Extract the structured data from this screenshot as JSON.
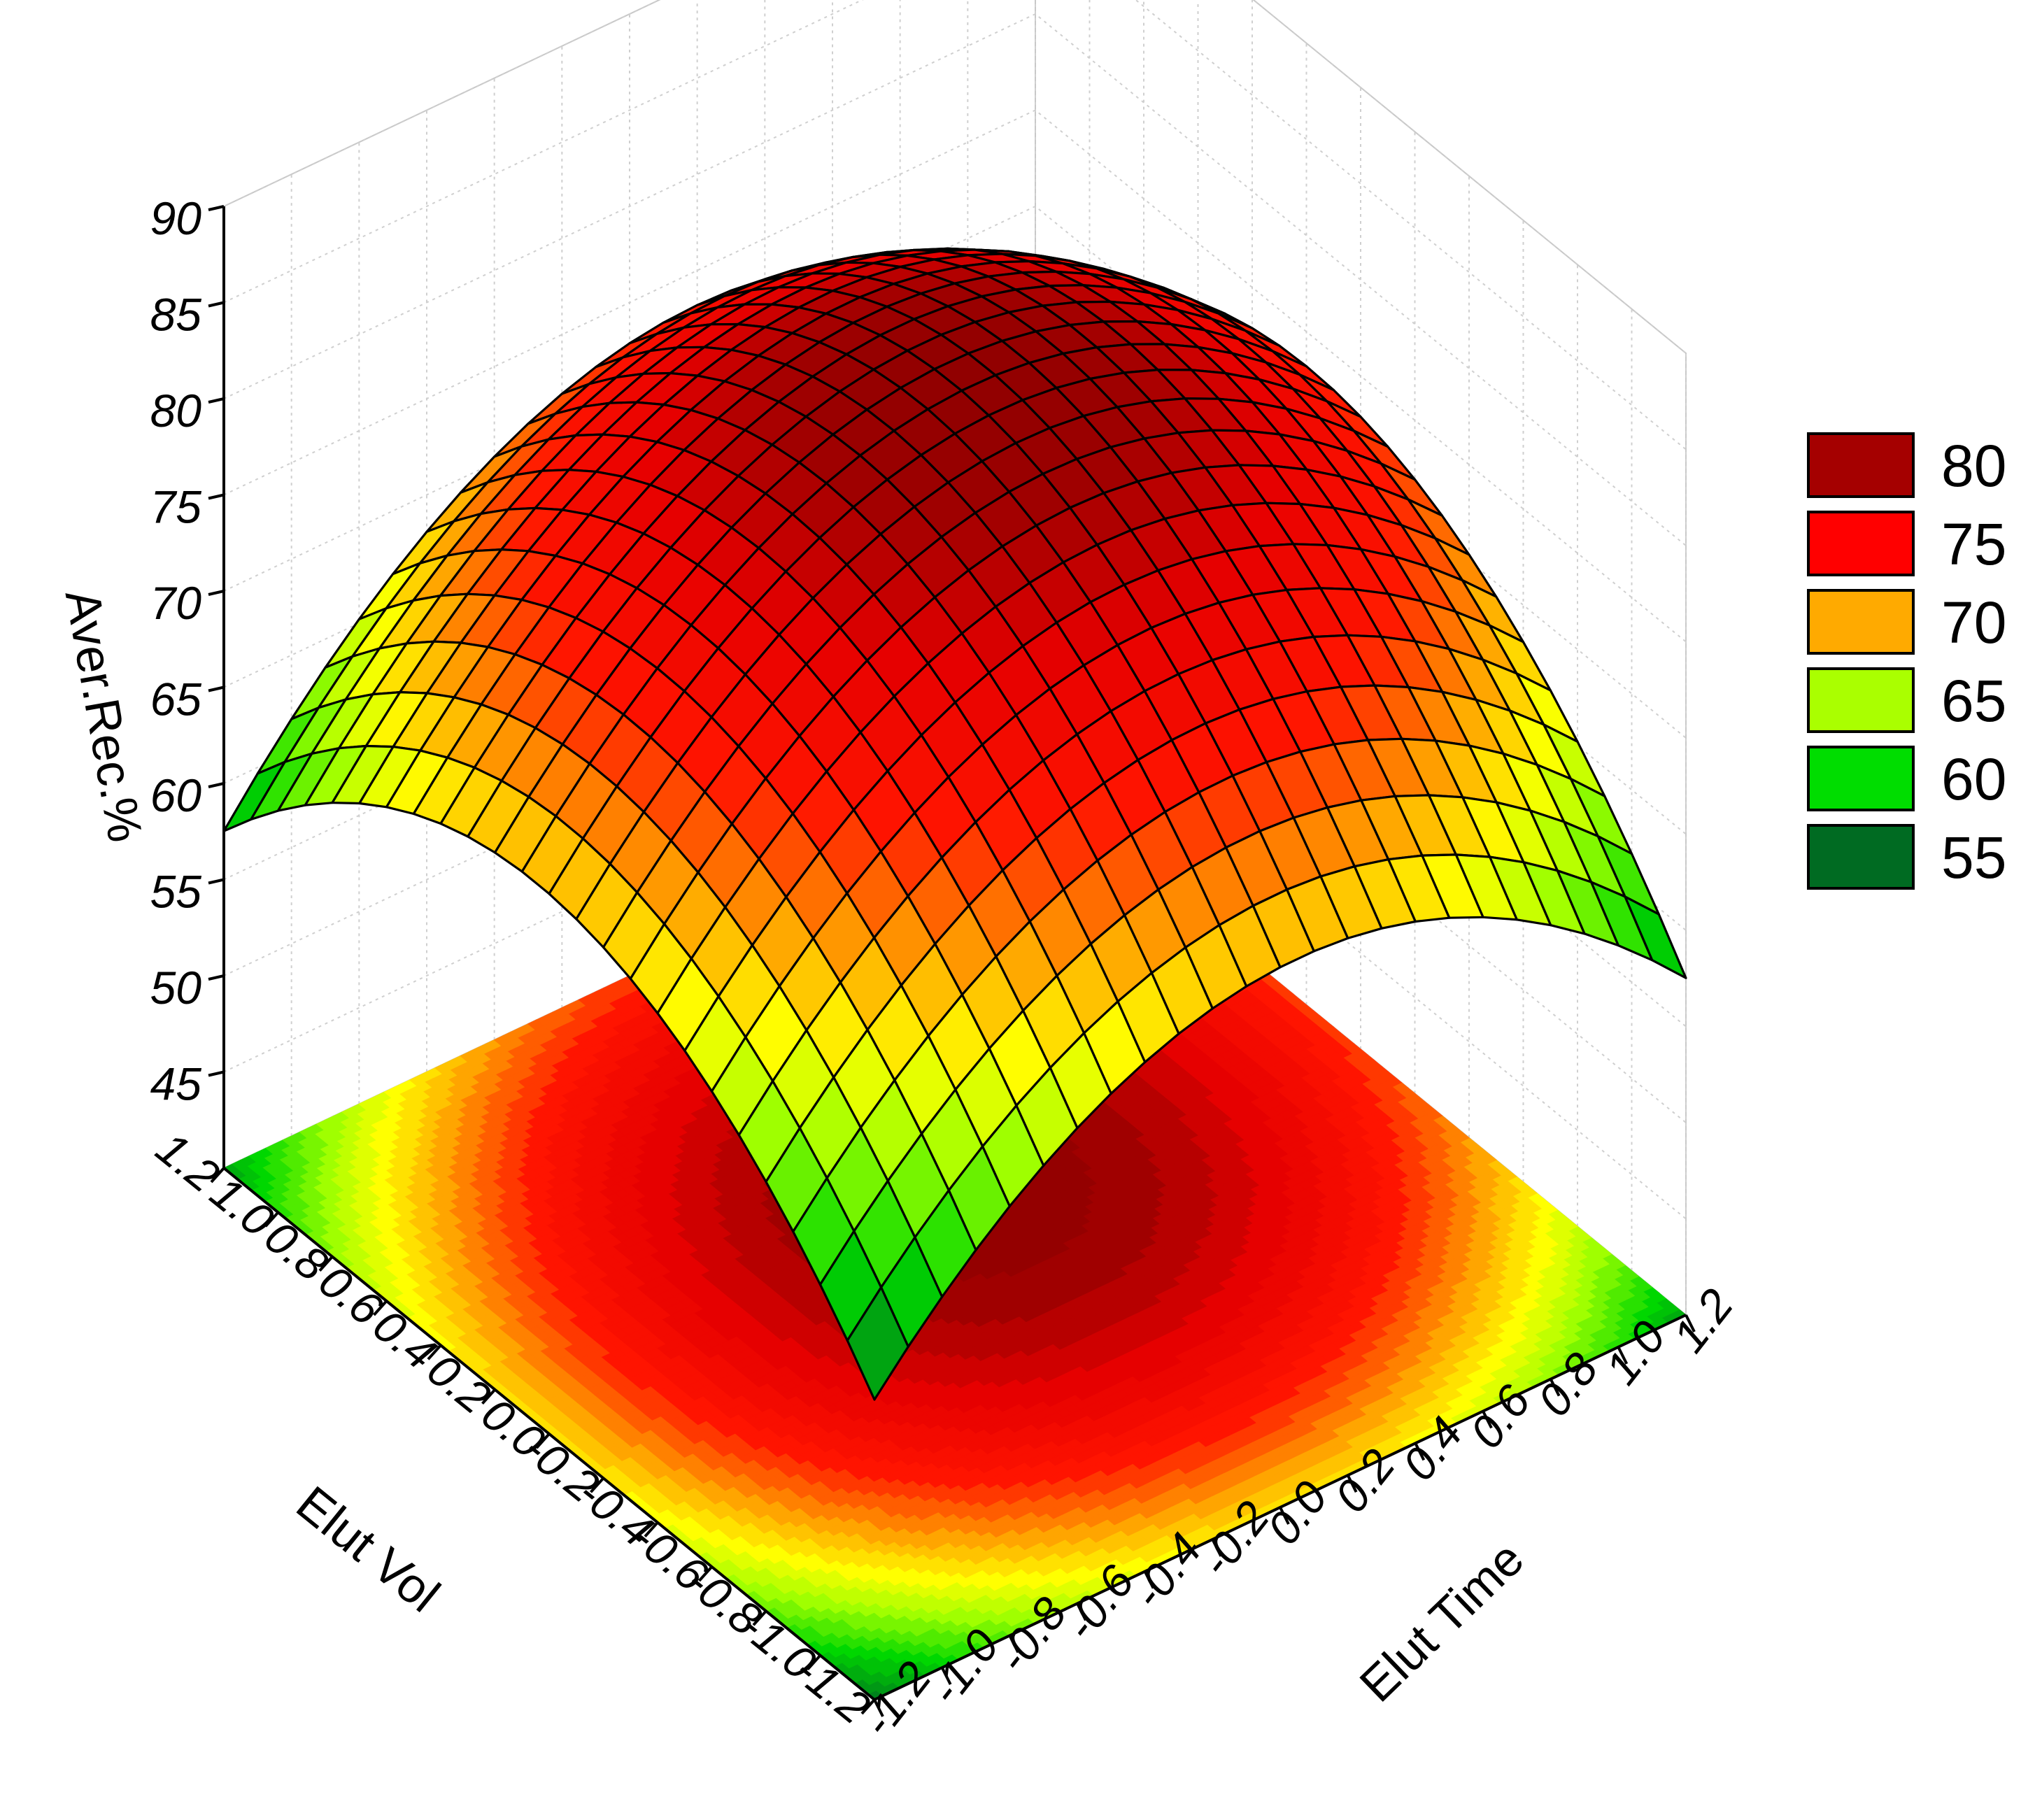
{
  "chart_data": {
    "type": "surface3d",
    "title": "",
    "xlabel": "Elut Time",
    "ylabel": "Elut Vol",
    "zlabel": "Aver.Rec.%",
    "xlim": [
      -1.2,
      1.2
    ],
    "ylim": [
      -1.2,
      1.2
    ],
    "zlim": [
      40,
      90
    ],
    "x_ticks": [
      "-1.2",
      "-1.0",
      "-0.8",
      "-0.6",
      "-0.4",
      "-0.2",
      "0.0",
      "0.2",
      "0.4",
      "0.6",
      "0.8",
      "1.0",
      "1.2"
    ],
    "y_ticks": [
      "-1.2",
      "-1.0",
      "-0.8",
      "-0.6",
      "-0.4",
      "-0.2",
      "0.0",
      "0.2",
      "0.4",
      "0.6",
      "0.8",
      "1.0",
      "1.2"
    ],
    "z_ticks": [
      "45",
      "50",
      "55",
      "60",
      "65",
      "70",
      "75",
      "80",
      "85",
      "90"
    ],
    "model": {
      "intercept": 82,
      "x_linear": 2,
      "y_linear": 2,
      "x_quadratic": -8,
      "y_quadratic": -8,
      "xy": 1
    },
    "grid": true,
    "contour_projection": true,
    "legend": {
      "position": "right",
      "entries": [
        {
          "label": "80",
          "color": "#a50000"
        },
        {
          "label": "75",
          "color": "#ff0000"
        },
        {
          "label": "70",
          "color": "#ffaa00"
        },
        {
          "label": "65",
          "color": "#aaff00"
        },
        {
          "label": "60",
          "color": "#00dd00"
        },
        {
          "label": "55",
          "color": "#006b22"
        }
      ]
    }
  }
}
